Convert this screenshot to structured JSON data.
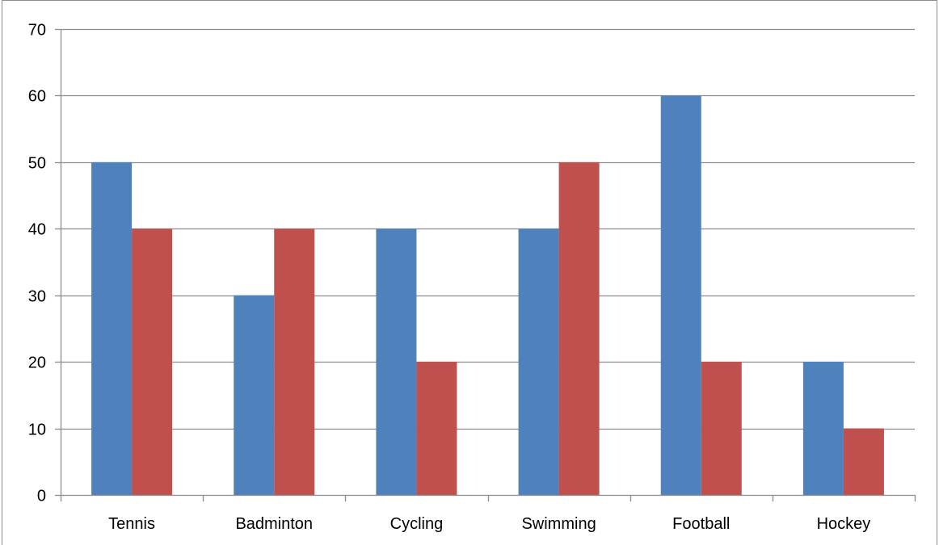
{
  "chart_data": {
    "type": "bar",
    "title": "",
    "xlabel": "",
    "ylabel": "",
    "categories": [
      "Tennis",
      "Badminton",
      "Cycling",
      "Swimming",
      "Football",
      "Hockey"
    ],
    "series": [
      {
        "values": [
          50,
          30,
          40,
          40,
          60,
          20
        ],
        "color": "#4f81bd"
      },
      {
        "values": [
          40,
          40,
          20,
          50,
          20,
          10
        ],
        "color": "#c0504d"
      }
    ],
    "ylim": [
      0,
      70
    ],
    "yticks": [
      "0",
      "10",
      "20",
      "30",
      "40",
      "50",
      "60",
      "70"
    ],
    "grid": true,
    "legend": "none",
    "colors": {
      "gridline": "#8c8c8c",
      "axis": "#8c8c8c"
    }
  }
}
